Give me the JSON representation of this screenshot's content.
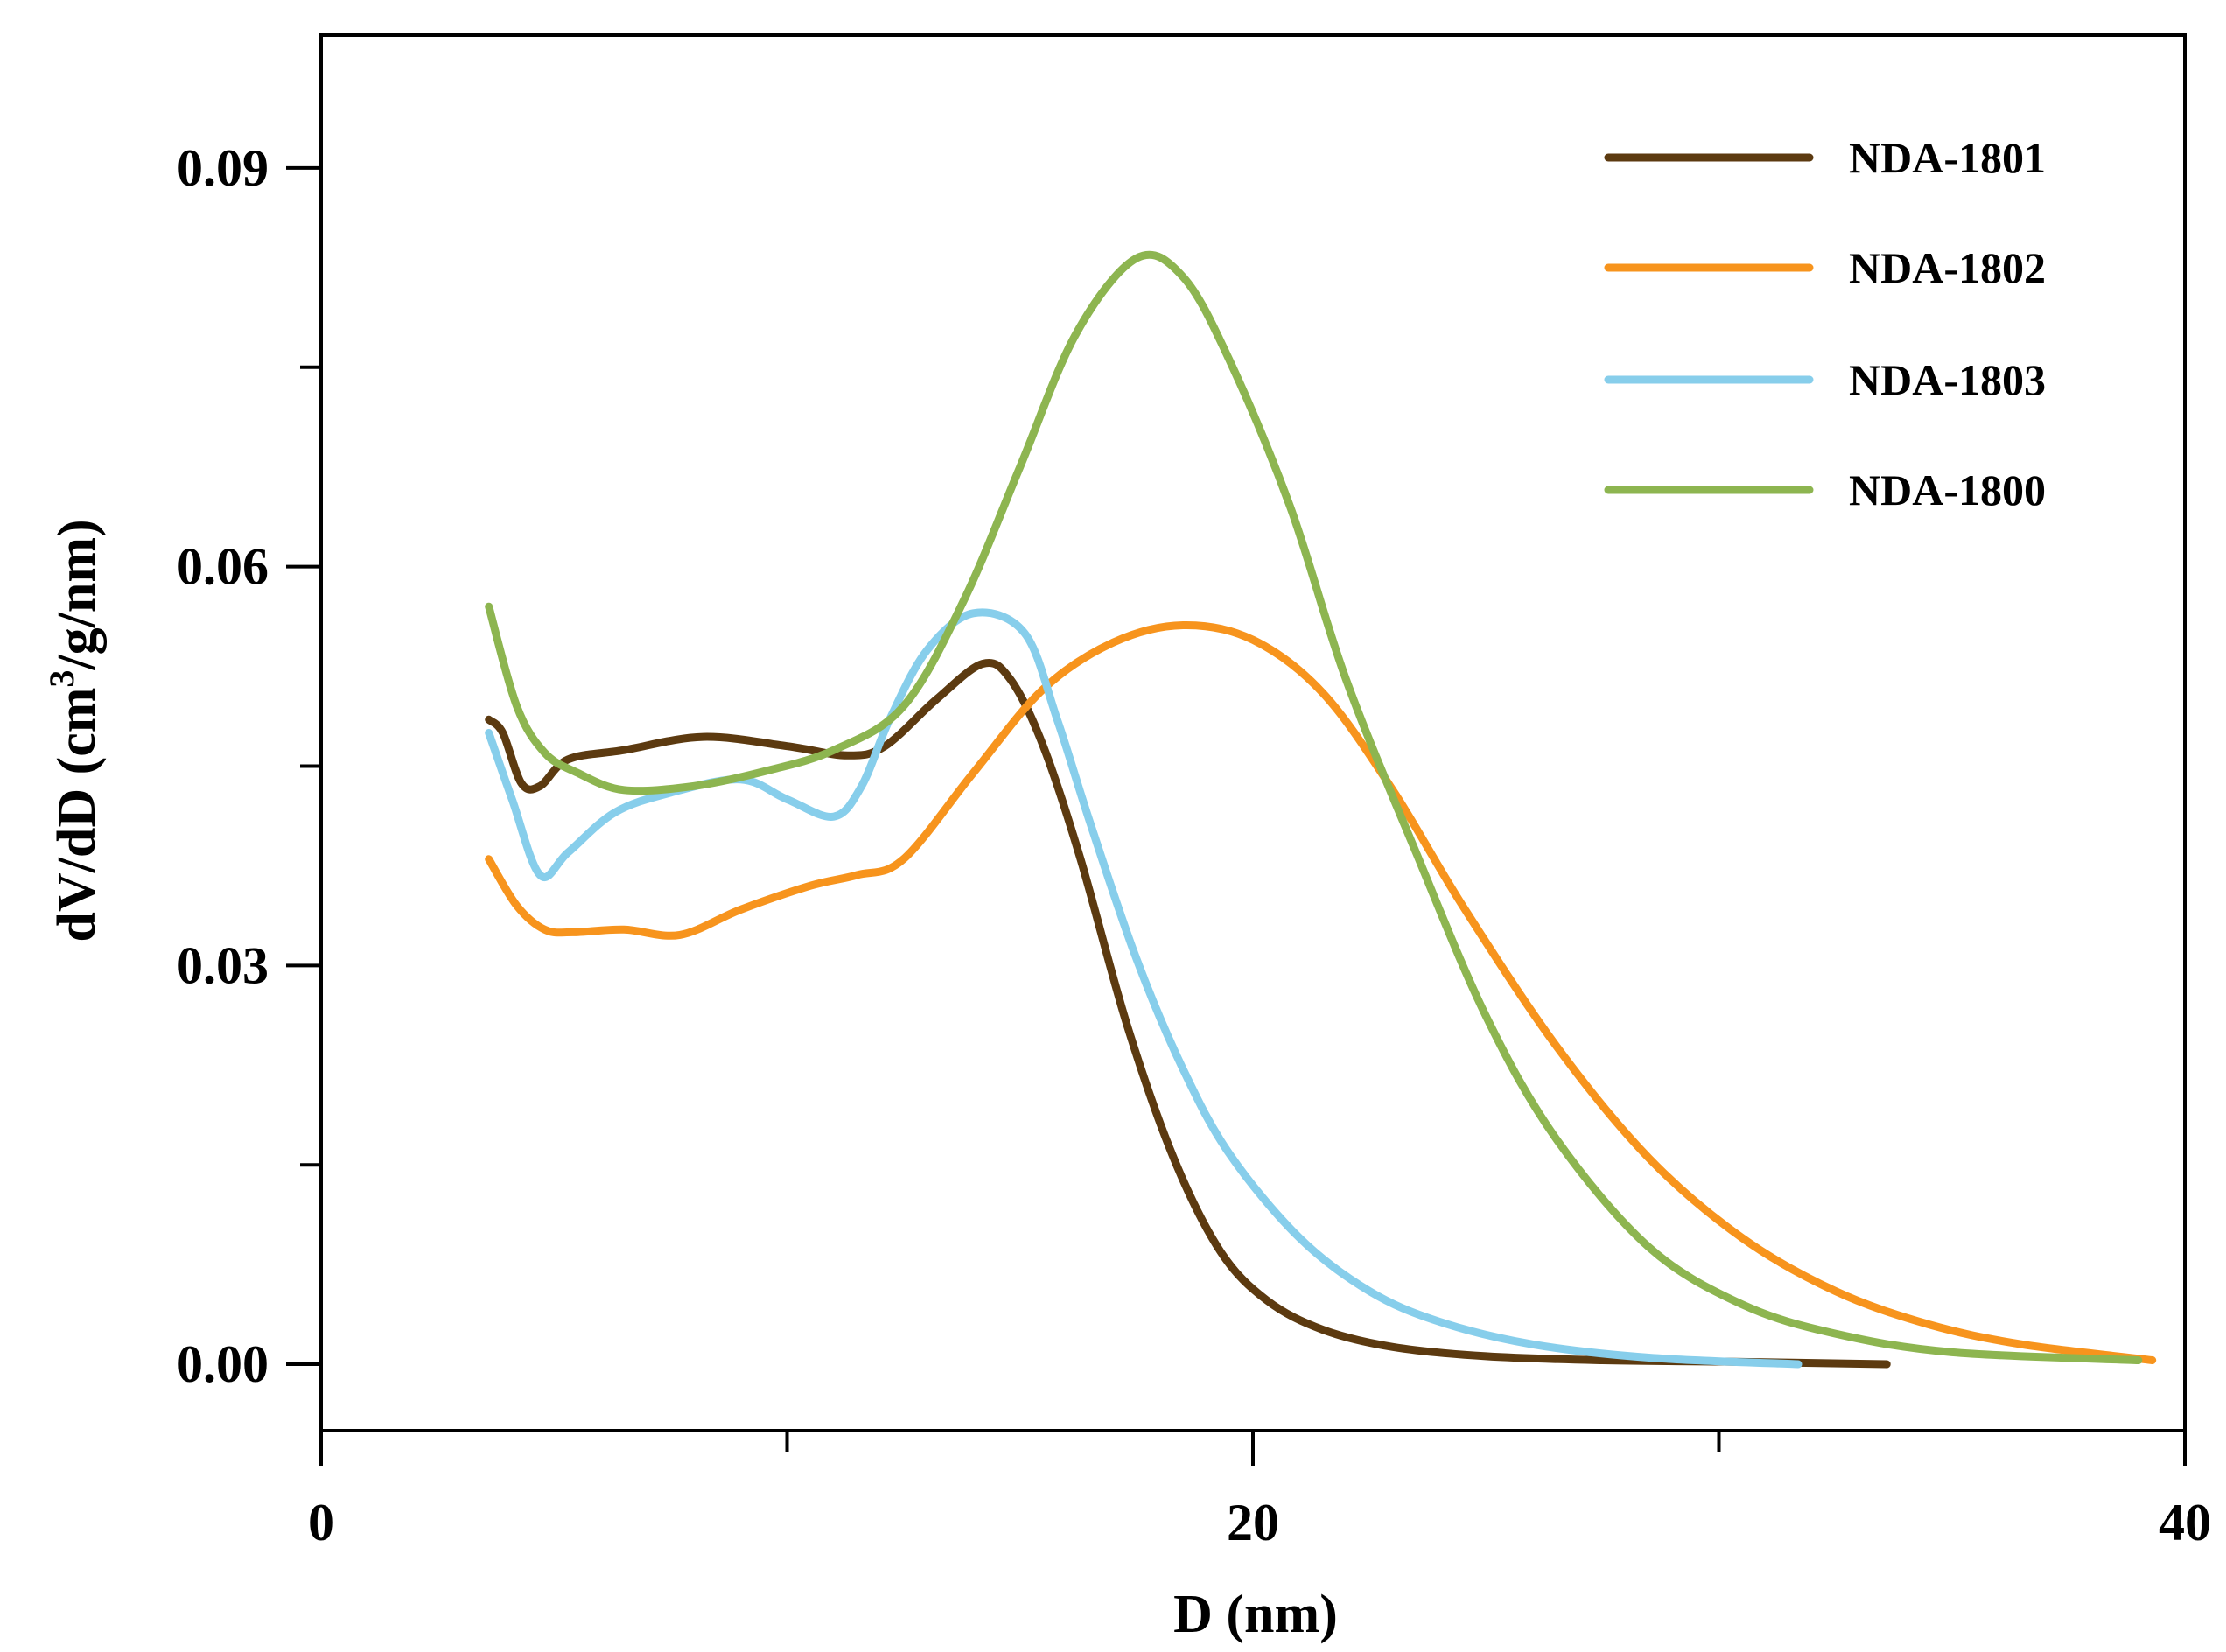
{
  "chart_data": {
    "type": "line",
    "title": "",
    "xlabel": "D (nm)",
    "ylabel_prefix": "dV/dD (cm",
    "ylabel_sup": "3",
    "ylabel_suffix": "/g/nm)",
    "xlim": [
      0,
      40
    ],
    "ylim": [
      -0.005,
      0.1
    ],
    "x_major_ticks": [
      0,
      20,
      40
    ],
    "x_minor_ticks": [
      10,
      30
    ],
    "x_tick_labels": [
      "0",
      "20",
      "40"
    ],
    "y_major_ticks": [
      0.0,
      0.03,
      0.06,
      0.09
    ],
    "y_minor_ticks": [
      0.015,
      0.045,
      0.075
    ],
    "y_tick_labels": [
      "0.00",
      "0.03",
      "0.06",
      "0.09"
    ],
    "grid": false,
    "legend_position": "top-right",
    "series": [
      {
        "name": "NDA-1801",
        "color": "#5C3A10",
        "x": [
          3.6,
          3.9,
          4.3,
          4.7,
          5.3,
          6.5,
          8.2,
          10,
          11.3,
          12.1,
          13.2,
          14.2,
          14.8,
          15.5,
          16.3,
          17.3,
          18.3,
          19.3,
          20.3,
          21.5,
          23,
          25,
          27.5,
          30,
          33.6
        ],
        "y": [
          0.0485,
          0.0475,
          0.0437,
          0.0435,
          0.0455,
          0.0462,
          0.0472,
          0.0465,
          0.0458,
          0.0465,
          0.05,
          0.0527,
          0.0515,
          0.0465,
          0.038,
          0.0255,
          0.0155,
          0.0085,
          0.0048,
          0.0026,
          0.0013,
          0.0006,
          0.0003,
          0.0002,
          0.0
        ]
      },
      {
        "name": "NDA-1802",
        "color": "#F7941D",
        "x": [
          3.6,
          4.2,
          4.8,
          5.4,
          6.5,
          7.7,
          9,
          10.5,
          11.5,
          12.5,
          14,
          15.5,
          17,
          18.5,
          20,
          21.5,
          23,
          24.5,
          26.5,
          28.5,
          30.5,
          32.5,
          34.5,
          36.5,
          39.3
        ],
        "y": [
          0.038,
          0.0345,
          0.0327,
          0.0325,
          0.0327,
          0.0323,
          0.0342,
          0.036,
          0.0368,
          0.038,
          0.0445,
          0.0508,
          0.0543,
          0.0556,
          0.0545,
          0.0505,
          0.0432,
          0.0345,
          0.024,
          0.0155,
          0.0095,
          0.0055,
          0.003,
          0.0015,
          0.0003
        ]
      },
      {
        "name": "NDA-1803",
        "color": "#87CEEB",
        "x": [
          3.6,
          4.1,
          4.7,
          5.3,
          6.3,
          7.5,
          9,
          10,
          11,
          11.6,
          12.2,
          13,
          14,
          15.1,
          15.8,
          16.5,
          17.5,
          18.5,
          19.5,
          21,
          22.5,
          24,
          26,
          28.5,
          31.7
        ],
        "y": [
          0.0475,
          0.0425,
          0.0368,
          0.0385,
          0.0415,
          0.043,
          0.044,
          0.0425,
          0.0412,
          0.0435,
          0.0485,
          0.0537,
          0.0565,
          0.055,
          0.0485,
          0.0408,
          0.0305,
          0.0222,
          0.0158,
          0.0095,
          0.0055,
          0.0032,
          0.0015,
          0.0005,
          0.0
        ]
      },
      {
        "name": "NDA-1800",
        "color": "#8DB550",
        "x": [
          3.6,
          4.2,
          4.8,
          5.5,
          6.5,
          8,
          9.5,
          11,
          12.5,
          13.8,
          15,
          16.2,
          17.5,
          18.5,
          19.5,
          20.8,
          22,
          23.5,
          25,
          26.5,
          28.5,
          30.5,
          32.5,
          35,
          39.0
        ],
        "y": [
          0.057,
          0.0495,
          0.046,
          0.0445,
          0.0432,
          0.0435,
          0.0446,
          0.0462,
          0.0495,
          0.0575,
          0.0675,
          0.0775,
          0.0832,
          0.0818,
          0.0755,
          0.0645,
          0.0515,
          0.0385,
          0.0262,
          0.017,
          0.0088,
          0.0045,
          0.0023,
          0.0009,
          0.0003
        ]
      }
    ]
  }
}
